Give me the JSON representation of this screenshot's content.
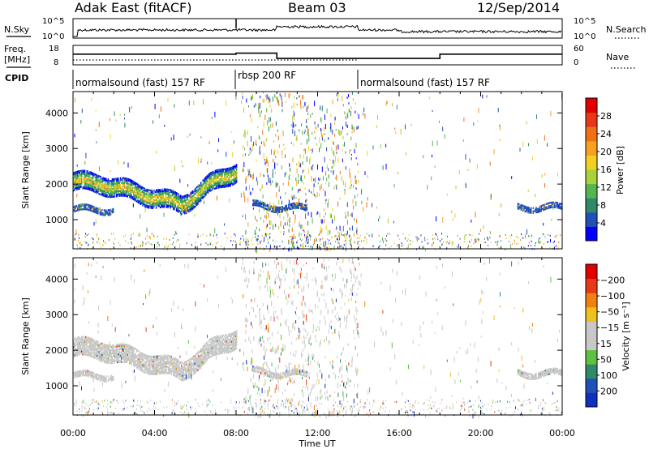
{
  "header": {
    "station": "Adak East (fitACF)",
    "beam": "Beam 03",
    "date": "12/Sep/2014"
  },
  "noise_panel": {
    "left_label": "N.Sky",
    "right_label": "N.Search",
    "left_ticks": [
      "10^5",
      "10^0"
    ],
    "right_ticks": [
      "10^5",
      "10^0"
    ]
  },
  "freq_panel": {
    "left_label": "Freq.",
    "unit": "[MHz]",
    "right_label": "Nave",
    "left_ticks": [
      "18",
      "8"
    ],
    "right_ticks": [
      "60",
      "0"
    ],
    "freq_segments": [
      {
        "start_h": 0,
        "end_h": 8.0,
        "value_mhz": 13.5
      },
      {
        "start_h": 8.0,
        "end_h": 10.0,
        "value_mhz": 14.0
      },
      {
        "start_h": 10.0,
        "end_h": 18.0,
        "value_mhz": 11.3
      },
      {
        "start_h": 18.0,
        "end_h": 24.0,
        "value_mhz": 13.5
      }
    ]
  },
  "cpid": {
    "label": "CPID",
    "segments": [
      {
        "start_h": 0,
        "end_h": 8.0,
        "name": "normalsound (fast) 157 RF"
      },
      {
        "start_h": 8.0,
        "end_h": 14.0,
        "name": "rbsp 200 RF"
      },
      {
        "start_h": 14.0,
        "end_h": 24.0,
        "name": "normalsound (fast) 157 RF"
      }
    ]
  },
  "chart_data": [
    {
      "type": "heatmap",
      "panel": "power",
      "ylabel": "Slant Range [km]",
      "xlabel": "",
      "xlim": [
        0,
        24
      ],
      "ylim": [
        180,
        4600
      ],
      "yticks": [
        1000,
        2000,
        3000,
        4000
      ],
      "colorbar": {
        "label": "Power [dB]",
        "ticks": [
          "4",
          "8",
          "12",
          "16",
          "20",
          "24",
          "28"
        ],
        "colors": [
          "#0000ff",
          "#2050b8",
          "#2e8a6a",
          "#55b550",
          "#a8d23a",
          "#f0d020",
          "#f8a020",
          "#f07018",
          "#e83818",
          "#e00000"
        ]
      },
      "echo_bands": [
        {
          "start_h": 0.0,
          "end_h": 8.0,
          "center_km": [
            2050,
            2000,
            1800,
            1600,
            1400,
            1950,
            2350
          ],
          "width_km": 500,
          "dominant": "mixed"
        },
        {
          "start_h": 0.0,
          "end_h": 2.0,
          "center_km": [
            1280,
            1260
          ],
          "width_km": 160,
          "dominant": "#2050b8"
        },
        {
          "start_h": 8.8,
          "end_h": 11.5,
          "center_km": [
            1400,
            1300
          ],
          "width_km": 180,
          "dominant": "#2050b8"
        },
        {
          "start_h": 21.8,
          "end_h": 24.0,
          "center_km": [
            1330,
            1330
          ],
          "width_km": 160,
          "dominant": "#2050b8"
        }
      ]
    },
    {
      "type": "heatmap",
      "panel": "velocity",
      "ylabel": "Slant Range [km]",
      "xlabel": "Time UT",
      "xlim": [
        0,
        24
      ],
      "ylim": [
        180,
        4600
      ],
      "yticks": [
        1000,
        2000,
        3000,
        4000
      ],
      "xticks": [
        "00:00",
        "04:00",
        "08:00",
        "12:00",
        "16:00",
        "20:00",
        "00:00"
      ],
      "colorbar": {
        "label": "Velocity [m s⁻¹]",
        "ticks": [
          "200",
          "100",
          "50",
          "15",
          "−15",
          "−50",
          "−100",
          "−200"
        ],
        "colors": [
          "#1030c0",
          "#2050b8",
          "#2e8a6a",
          "#60c040",
          "#c8c8c8",
          "#c8c8c8",
          "#f0c020",
          "#f08010",
          "#e83818",
          "#e00000"
        ]
      },
      "echo_bands": [
        {
          "start_h": 0.0,
          "end_h": 8.0,
          "center_km": [
            2050,
            2000,
            1800,
            1600,
            1400,
            1950,
            2350
          ],
          "width_km": 500,
          "dominant": "#c8c8c8"
        },
        {
          "start_h": 0.0,
          "end_h": 2.0,
          "center_km": [
            1280,
            1260
          ],
          "width_km": 160,
          "dominant": "#c8c8c8"
        },
        {
          "start_h": 8.8,
          "end_h": 11.5,
          "center_km": [
            1400,
            1300
          ],
          "width_km": 180,
          "dominant": "#c8c8c8"
        },
        {
          "start_h": 21.8,
          "end_h": 24.0,
          "center_km": [
            1330,
            1330
          ],
          "width_km": 160,
          "dominant": "#c8c8c8"
        }
      ]
    }
  ]
}
